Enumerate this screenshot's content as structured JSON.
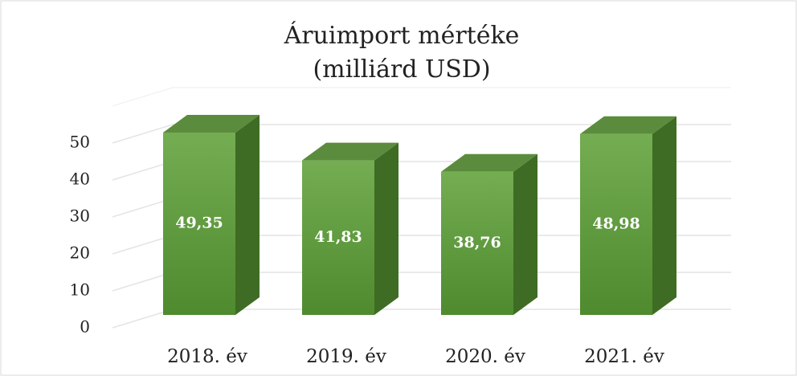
{
  "chart_data": {
    "type": "bar3d",
    "title": "Áruimport mértéke",
    "subtitle": "(milliárd USD)",
    "categories": [
      "2018. év",
      "2019. év",
      "2020. év",
      "2021. év"
    ],
    "values": [
      49.35,
      41.83,
      38.76,
      48.98
    ],
    "value_labels": [
      "49,35",
      "41,83",
      "38,76",
      "48,98"
    ],
    "color": "#6aa447",
    "ylim": [
      0,
      60
    ],
    "yticks": [
      0,
      10,
      20,
      30,
      40,
      50
    ],
    "grid": true
  }
}
